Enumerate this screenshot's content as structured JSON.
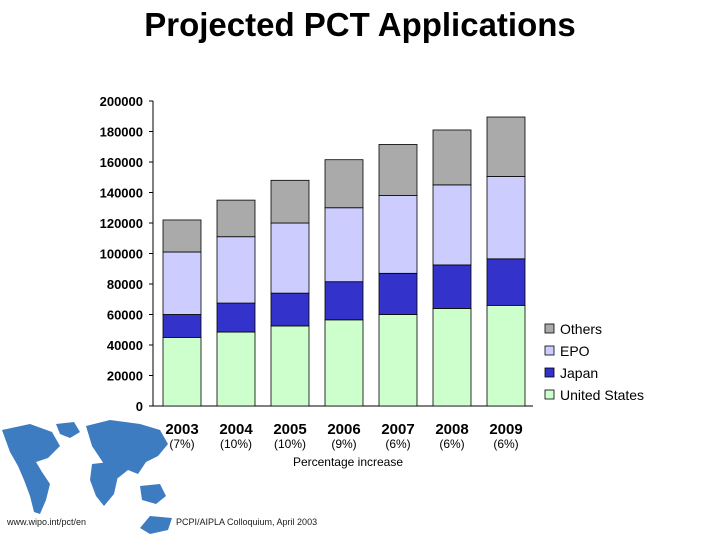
{
  "slide": {
    "title": "Projected PCT Applications",
    "footer_left": "www.wipo.int/pct/en",
    "footer_center": "PCPI/AIPLA Colloquium, April 2003"
  },
  "colors": {
    "Others": "#aaaaaa",
    "EPO": "#ccccff",
    "Japan": "#3333cc",
    "United States": "#ccffcc",
    "map": "#3e7cc2"
  },
  "chart_data": {
    "type": "bar",
    "stacked": true,
    "categories": [
      "2003",
      "2004",
      "2005",
      "2006",
      "2007",
      "2008",
      "2009"
    ],
    "category_annotations": [
      "(7%)",
      "(10%)",
      "(10%)",
      "(9%)",
      "(6%)",
      "(6%)",
      "(6%)"
    ],
    "annotation_caption": "Percentage increase",
    "series": [
      {
        "name": "United States",
        "values": [
          45000,
          48500,
          52500,
          56500,
          60000,
          64000,
          66000
        ]
      },
      {
        "name": "Japan",
        "values": [
          15000,
          19000,
          21500,
          25000,
          27000,
          28500,
          30500
        ]
      },
      {
        "name": "EPO",
        "values": [
          41000,
          43500,
          46000,
          48500,
          51000,
          52500,
          54000
        ]
      },
      {
        "name": "Others",
        "values": [
          21000,
          24000,
          28000,
          31500,
          33500,
          36000,
          39000
        ]
      }
    ],
    "legend_order": [
      "Others",
      "EPO",
      "Japan",
      "United States"
    ],
    "legend_position": "right",
    "ylim": [
      0,
      200000
    ],
    "yticks": [
      0,
      20000,
      40000,
      60000,
      80000,
      100000,
      120000,
      140000,
      160000,
      180000,
      200000
    ],
    "grid": false
  }
}
